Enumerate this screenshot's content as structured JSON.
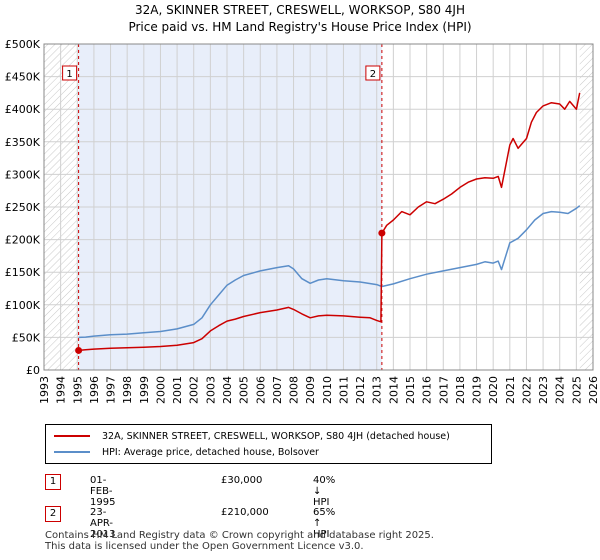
{
  "header": {
    "title_line1": "32A, SKINNER STREET, CRESWELL, WORKSOP, S80 4JH",
    "title_line2": "Price paid vs. HM Land Registry's House Price Index (HPI)"
  },
  "legend": {
    "property_label": "32A, SKINNER STREET, CRESWELL, WORKSOP, S80 4JH (detached house)",
    "hpi_label": "HPI: Average price, detached house, Bolsover"
  },
  "annotations": [
    {
      "num": "1",
      "date": "01-FEB-1995",
      "price": "£30,000",
      "hpi": "40% ↓ HPI"
    },
    {
      "num": "2",
      "date": "23-APR-2013",
      "price": "£210,000",
      "hpi": "65% ↑ HPI"
    }
  ],
  "footer": {
    "line1": "Contains HM Land Registry data © Crown copyright and database right 2025.",
    "line2": "This data is licensed under the Open Government Licence v3.0."
  },
  "colors": {
    "property": "#cc0000",
    "hpi": "#5b8ec9",
    "shade": "#e8eefa",
    "grid": "#d0d0d0"
  },
  "chart_data": {
    "type": "line",
    "xlim": [
      1993,
      2026
    ],
    "ylim": [
      0,
      500000
    ],
    "x_ticks": [
      1993,
      1994,
      1995,
      1996,
      1997,
      1998,
      1999,
      2000,
      2001,
      2002,
      2003,
      2004,
      2005,
      2006,
      2007,
      2008,
      2009,
      2010,
      2011,
      2012,
      2013,
      2014,
      2015,
      2016,
      2017,
      2018,
      2019,
      2020,
      2021,
      2022,
      2023,
      2024,
      2025,
      2026
    ],
    "y_ticks": [
      {
        "value": 0,
        "label": "£0"
      },
      {
        "value": 50000,
        "label": "£50K"
      },
      {
        "value": 100000,
        "label": "£100K"
      },
      {
        "value": 150000,
        "label": "£150K"
      },
      {
        "value": 200000,
        "label": "£200K"
      },
      {
        "value": 250000,
        "label": "£250K"
      },
      {
        "value": 300000,
        "label": "£300K"
      },
      {
        "value": 350000,
        "label": "£350K"
      },
      {
        "value": 400000,
        "label": "£400K"
      },
      {
        "value": 450000,
        "label": "£450K"
      },
      {
        "value": 500000,
        "label": "£500K"
      }
    ],
    "shaded_ranges": [
      [
        1995.08,
        2013.31
      ]
    ],
    "hatched_ranges": [
      [
        1993,
        1995.08
      ],
      [
        2025.2,
        2026
      ]
    ],
    "markers": [
      {
        "label": "1",
        "x": 1995.08,
        "y": 30000
      },
      {
        "label": "2",
        "x": 2013.31,
        "y": 210000
      }
    ],
    "series": [
      {
        "name": "32A, SKINNER STREET, CRESWELL, WORKSOP, S80 4JH (detached house)",
        "color": "#cc0000",
        "x": [
          1995.08,
          1995.5,
          1996,
          1997,
          1998,
          1999,
          2000,
          2001,
          2002,
          2002.5,
          2003,
          2003.5,
          2004,
          2004.5,
          2005,
          2006,
          2007,
          2007.7,
          2008,
          2008.5,
          2009,
          2009.5,
          2010,
          2011,
          2012,
          2012.6,
          2013.0,
          2013.25,
          2013.31,
          2013.6,
          2014,
          2014.5,
          2015,
          2015.5,
          2016,
          2016.5,
          2017,
          2017.5,
          2018,
          2018.5,
          2019,
          2019.5,
          2020,
          2020.3,
          2020.5,
          2021,
          2021.2,
          2021.5,
          2022,
          2022.3,
          2022.6,
          2023,
          2023.5,
          2024,
          2024.3,
          2024.6,
          2025,
          2025.2
        ],
        "y": [
          30000,
          31000,
          32000,
          33500,
          34000,
          35000,
          36000,
          38000,
          42000,
          48000,
          60000,
          68000,
          75000,
          78000,
          82000,
          88000,
          92000,
          96000,
          93000,
          86000,
          80000,
          83000,
          84000,
          83000,
          81000,
          80000,
          76000,
          74000,
          210000,
          222000,
          230000,
          243000,
          238000,
          250000,
          258000,
          255000,
          262000,
          270000,
          280000,
          288000,
          293000,
          295000,
          294000,
          297000,
          280000,
          345000,
          355000,
          340000,
          355000,
          380000,
          395000,
          405000,
          410000,
          408000,
          400000,
          412000,
          400000,
          425000
        ]
      },
      {
        "name": "HPI: Average price, detached house, Bolsover",
        "color": "#5b8ec9",
        "x": [
          1995.08,
          1995.5,
          1996,
          1997,
          1998,
          1999,
          2000,
          2001,
          2002,
          2002.5,
          2003,
          2003.5,
          2004,
          2004.5,
          2005,
          2006,
          2007,
          2007.7,
          2008,
          2008.5,
          2009,
          2009.5,
          2010,
          2011,
          2012,
          2013,
          2013.31,
          2014,
          2015,
          2016,
          2017,
          2018,
          2019,
          2019.5,
          2020,
          2020.3,
          2020.5,
          2021,
          2021.5,
          2022,
          2022.5,
          2023,
          2023.5,
          2024,
          2024.5,
          2025,
          2025.2
        ],
        "y": [
          50000,
          50500,
          52000,
          54000,
          55000,
          57000,
          59000,
          63000,
          70000,
          80000,
          100000,
          115000,
          130000,
          138000,
          145000,
          152000,
          157000,
          160000,
          155000,
          140000,
          133000,
          138000,
          140000,
          137000,
          135000,
          131000,
          128000,
          132000,
          140000,
          147000,
          152000,
          157000,
          162000,
          166000,
          164000,
          167000,
          154000,
          195000,
          202000,
          215000,
          230000,
          240000,
          243000,
          242000,
          240000,
          248000,
          252000
        ]
      }
    ]
  }
}
